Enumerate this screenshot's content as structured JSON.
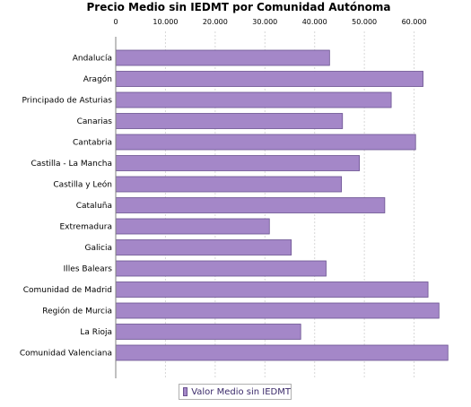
{
  "chart_data": {
    "type": "bar",
    "orientation": "horizontal",
    "title": "Precio Medio sin IEDMT por Comunidad Autónoma",
    "xlabel": "",
    "ylabel": "",
    "xlim": [
      0,
      70000
    ],
    "ticks": [
      0,
      10000,
      20000,
      30000,
      40000,
      50000,
      60000
    ],
    "tick_labels": [
      "0",
      "10.000",
      "20.000",
      "30.000",
      "40.000",
      "50.000",
      "60.000"
    ],
    "axis_position": "top",
    "grid": true,
    "legend_position": "bottom",
    "categories": [
      "Andalucía",
      "Aragón",
      "Principado de Asturias",
      "Canarias",
      "Cantabria",
      "Castilla - La Mancha",
      "Castilla y León",
      "Cataluña",
      "Extremadura",
      "Galicia",
      "Illes Balears",
      "Comunidad de Madrid",
      "Región de Murcia",
      "La Rioja",
      "Comunidad Valenciana"
    ],
    "series": [
      {
        "name": "Valor Medio sin IEDMT",
        "color": "#a487c8",
        "values": [
          43000,
          61800,
          55400,
          45600,
          60300,
          49000,
          45400,
          54100,
          30900,
          35300,
          42300,
          62800,
          65000,
          37200,
          66800
        ]
      }
    ]
  },
  "colors": {
    "bar_fill": "#a487c8",
    "bar_stroke": "#6a5290",
    "grid": "#d8d8d8",
    "axis": "#808080"
  }
}
